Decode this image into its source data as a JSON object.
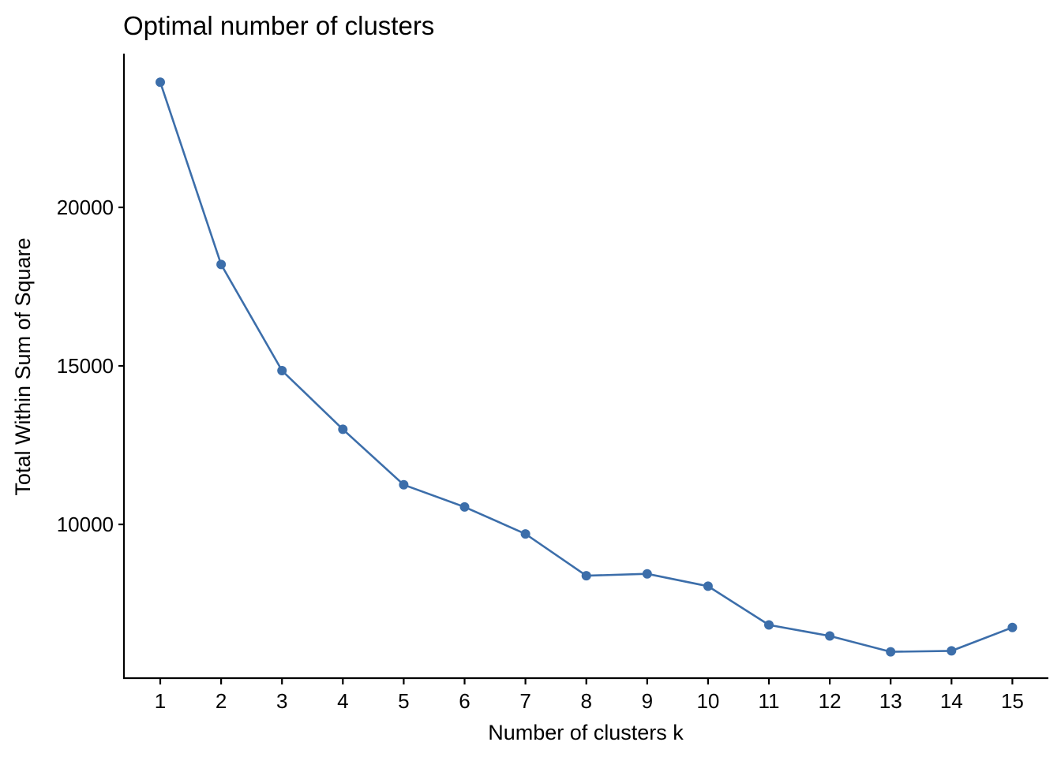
{
  "chart_data": {
    "type": "line",
    "title": "Optimal number of clusters",
    "xlabel": "Number of clusters k",
    "ylabel": "Total Within Sum of Square",
    "x": [
      "1",
      "2",
      "3",
      "4",
      "5",
      "6",
      "7",
      "8",
      "9",
      "10",
      "11",
      "12",
      "13",
      "14",
      "15"
    ],
    "series": [
      {
        "values": [
          23950,
          18200,
          14850,
          13000,
          11250,
          10550,
          9700,
          8380,
          8440,
          8050,
          6830,
          6480,
          5980,
          6010,
          6750
        ],
        "color": "#3C6EAA"
      }
    ],
    "yticks": [
      10000,
      15000,
      20000
    ],
    "ytick_labels": [
      "10000",
      "15000",
      "20000"
    ],
    "ylim": [
      5150,
      24850
    ],
    "grid": false,
    "legend": "none",
    "points": true
  }
}
